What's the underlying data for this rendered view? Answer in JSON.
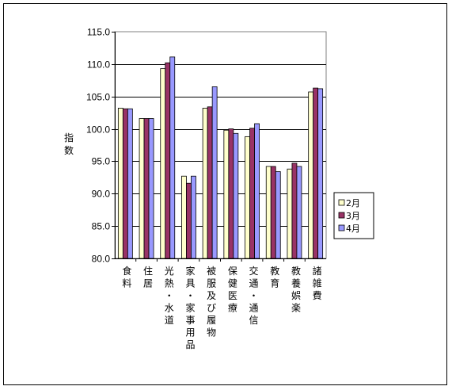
{
  "chart_data": {
    "type": "bar",
    "title": "",
    "ylabel": "指数",
    "xlabel": "",
    "ylim": [
      80.0,
      115.0
    ],
    "yticks": [
      "80.0",
      "85.0",
      "90.0",
      "95.0",
      "100.0",
      "105.0",
      "110.0",
      "115.0"
    ],
    "grid": true,
    "legend_position": "right",
    "categories": [
      "食料",
      "住居",
      "光熱・水道",
      "家具・家事用品",
      "被服及び履物",
      "保健医療",
      "交通・通信",
      "教育",
      "教養娯楽",
      "諸雑費"
    ],
    "series": [
      {
        "name": "2月",
        "color": "#ffffcc",
        "values": [
          103.2,
          101.6,
          109.3,
          92.7,
          103.2,
          99.8,
          98.8,
          94.2,
          93.8,
          105.7
        ]
      },
      {
        "name": "3月",
        "color": "#993366",
        "values": [
          103.1,
          101.6,
          110.2,
          91.6,
          103.4,
          100.0,
          100.1,
          94.2,
          94.7,
          106.3
        ]
      },
      {
        "name": "4月",
        "color": "#9999ff",
        "values": [
          103.1,
          101.6,
          111.1,
          92.7,
          106.5,
          99.3,
          100.8,
          93.4,
          94.2,
          106.2
        ]
      }
    ]
  }
}
